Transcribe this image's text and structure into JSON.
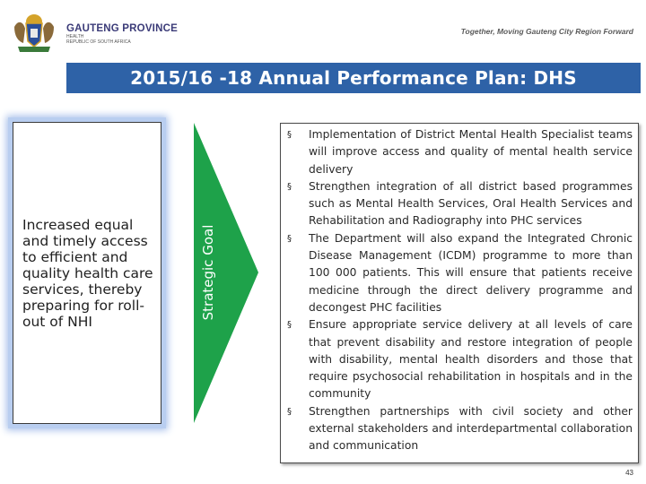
{
  "header": {
    "province_name": "GAUTENG PROVINCE",
    "province_dept": "HEALTH",
    "province_republic": "REPUBLIC OF SOUTH AFRICA",
    "tagline": "Together, Moving Gauteng City Region Forward"
  },
  "title": "2015/16 -18 Annual Performance Plan: DHS",
  "goal": {
    "text": "Increased equal and timely access to efficient and quality health care services, thereby preparing for roll-out of NHI",
    "arrow_label": "Strategic Goal"
  },
  "bullets": [
    {
      "marker": "§",
      "text": "Implementation of District Mental Health Specialist teams will improve access and quality of mental health service delivery"
    },
    {
      "marker": "§",
      "text": "Strengthen integration of all district based programmes such as Mental Health Services, Oral Health Services and Rehabilitation and Radiography into PHC services"
    },
    {
      "marker": "§",
      "text": "The Department will also expand the Integrated Chronic Disease Management (ICDM) programme to more than 100 000 patients. This will ensure that patients receive medicine through the direct delivery programme and decongest PHC facilities"
    },
    {
      "marker": "§",
      "text": "Ensure appropriate service delivery at all levels of care that prevent disability and restore integration of people with disability, mental health disorders and those that require psychosocial rehabilitation in hospitals and in the community"
    },
    {
      "marker": "§",
      "text": "Strengthen partnerships with civil society and other external stakeholders and interdepartmental collaboration and communication"
    }
  ],
  "page_number": "43",
  "colors": {
    "title_bar": "#2e62a7",
    "arrow": "#1ea24a",
    "goal_glow": "#b9cef0"
  }
}
